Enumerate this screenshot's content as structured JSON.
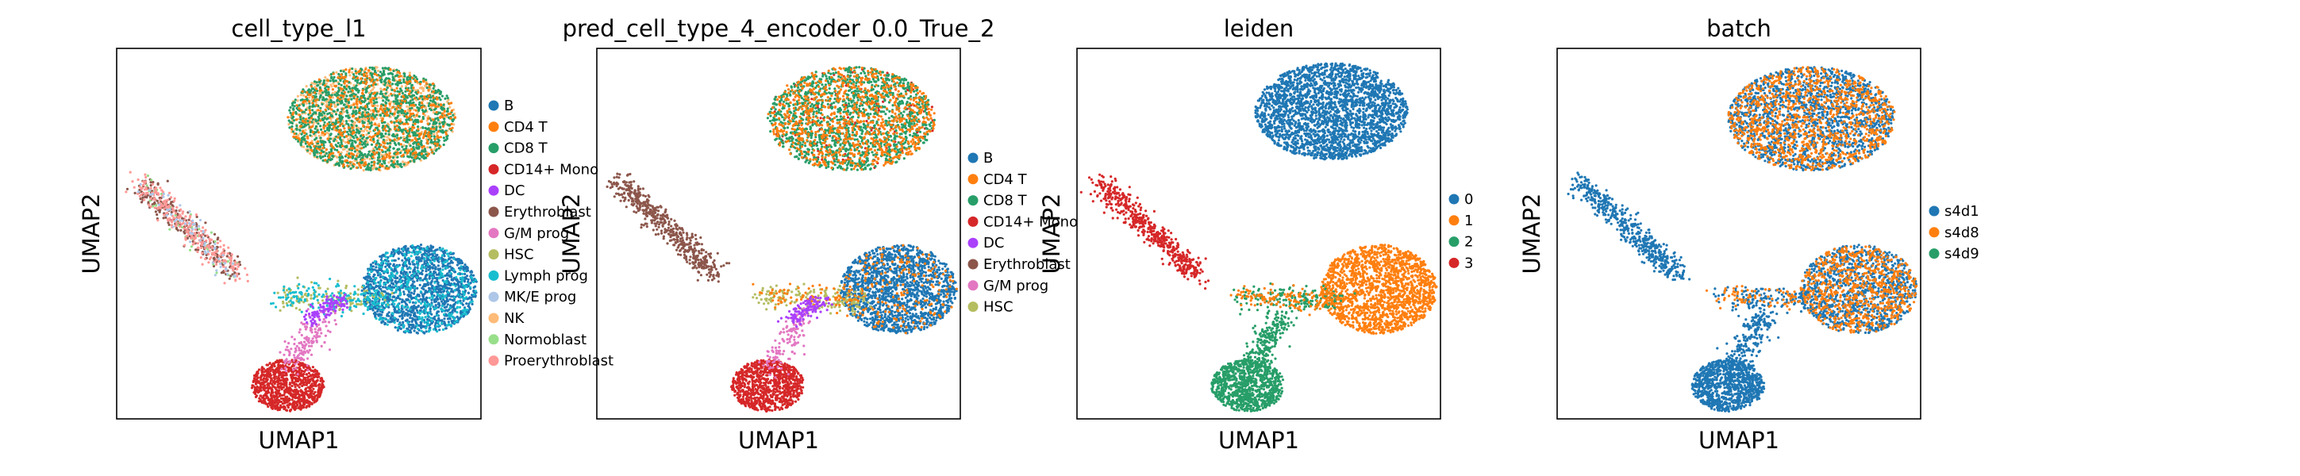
{
  "chart_data": [
    {
      "type": "scatter",
      "title": "cell_type_l1",
      "xlabel": "UMAP1",
      "ylabel": "UMAP2",
      "legend": "right",
      "grid": false,
      "categories": [
        {
          "name": "B",
          "color": "#1f77b4"
        },
        {
          "name": "CD4 T",
          "color": "#ff7f0e"
        },
        {
          "name": "CD8 T",
          "color": "#279e68"
        },
        {
          "name": "CD14+ Mono",
          "color": "#d62728"
        },
        {
          "name": "DC",
          "color": "#aa40fc"
        },
        {
          "name": "Erythroblast",
          "color": "#8c564b"
        },
        {
          "name": "G/M prog",
          "color": "#e377c2"
        },
        {
          "name": "HSC",
          "color": "#b5bd61"
        },
        {
          "name": "Lymph prog",
          "color": "#17becf"
        },
        {
          "name": "MK/E prog",
          "color": "#aec7e8"
        },
        {
          "name": "NK",
          "color": "#ffbb78"
        },
        {
          "name": "Normoblast",
          "color": "#98df8a"
        },
        {
          "name": "Proerythroblast",
          "color": "#ff9896"
        }
      ]
    },
    {
      "type": "scatter",
      "title": "pred_cell_type_4_encoder_0.0_True_2",
      "xlabel": "UMAP1",
      "ylabel": "UMAP2",
      "legend": "right",
      "grid": false,
      "categories": [
        {
          "name": "B",
          "color": "#1f77b4"
        },
        {
          "name": "CD4 T",
          "color": "#ff7f0e"
        },
        {
          "name": "CD8 T",
          "color": "#279e68"
        },
        {
          "name": "CD14+ Mono",
          "color": "#d62728"
        },
        {
          "name": "DC",
          "color": "#aa40fc"
        },
        {
          "name": "Erythroblast",
          "color": "#8c564b"
        },
        {
          "name": "G/M prog",
          "color": "#e377c2"
        },
        {
          "name": "HSC",
          "color": "#b5bd61"
        }
      ]
    },
    {
      "type": "scatter",
      "title": "leiden",
      "xlabel": "UMAP1",
      "ylabel": "UMAP2",
      "legend": "right",
      "grid": false,
      "categories": [
        {
          "name": "0",
          "color": "#1f77b4"
        },
        {
          "name": "1",
          "color": "#ff7f0e"
        },
        {
          "name": "2",
          "color": "#279e68"
        },
        {
          "name": "3",
          "color": "#d62728"
        }
      ]
    },
    {
      "type": "scatter",
      "title": "batch",
      "xlabel": "UMAP1",
      "ylabel": "UMAP2",
      "legend": "right",
      "grid": false,
      "categories": [
        {
          "name": "s4d1",
          "color": "#1f77b4"
        },
        {
          "name": "s4d8",
          "color": "#ff7f0e"
        },
        {
          "name": "s4d9",
          "color": "#279e68"
        }
      ]
    }
  ]
}
